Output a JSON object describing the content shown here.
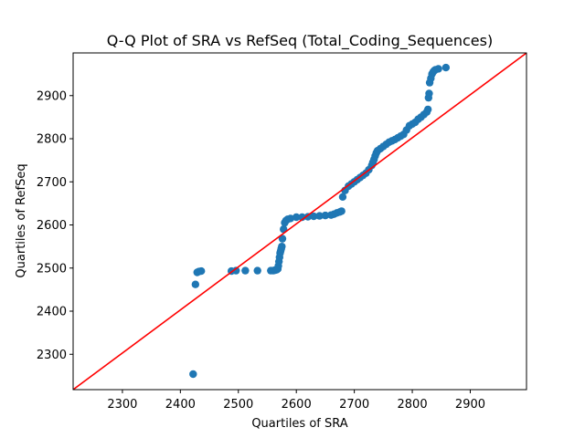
{
  "chart_data": {
    "type": "scatter",
    "title": "Q-Q Plot of SRA vs RefSeq (Total_Coding_Sequences)",
    "xlabel": "Quartiles of SRA",
    "ylabel": "Quartiles of RefSeq",
    "xlim": [
      2215,
      2997
    ],
    "ylim": [
      2218,
      2999
    ],
    "xticks": [
      2300,
      2400,
      2500,
      2600,
      2700,
      2800,
      2900
    ],
    "yticks": [
      2300,
      2400,
      2500,
      2600,
      2700,
      2800,
      2900
    ],
    "grid": false,
    "legend": "none",
    "point_color": "#1f77b4",
    "reference_line_color": "#ff0000",
    "reference_line": {
      "x": [
        2215,
        2997
      ],
      "y": [
        2218,
        2999
      ]
    },
    "series": [
      {
        "x": [
          2422,
          2426,
          2429,
          2432,
          2436,
          2488,
          2496,
          2512,
          2533,
          2556,
          2560,
          2563,
          2566,
          2568,
          2569,
          2570,
          2571,
          2572,
          2573,
          2574,
          2575,
          2576,
          2578,
          2580,
          2582,
          2585,
          2590,
          2600,
          2610,
          2620,
          2630,
          2640,
          2650,
          2660,
          2665,
          2670,
          2675,
          2678,
          2680,
          2684,
          2690,
          2695,
          2700,
          2705,
          2710,
          2715,
          2720,
          2725,
          2730,
          2732,
          2734,
          2736,
          2738,
          2740,
          2745,
          2750,
          2755,
          2760,
          2765,
          2770,
          2775,
          2780,
          2785,
          2790,
          2795,
          2800,
          2805,
          2810,
          2815,
          2820,
          2825,
          2827,
          2828,
          2829,
          2830,
          2832,
          2834,
          2836,
          2838,
          2840,
          2845,
          2858
        ],
        "y": [
          2254,
          2462,
          2490,
          2492,
          2493,
          2493,
          2494,
          2494,
          2494,
          2494,
          2494,
          2495,
          2496,
          2498,
          2505,
          2515,
          2525,
          2535,
          2540,
          2545,
          2550,
          2568,
          2590,
          2605,
          2610,
          2613,
          2615,
          2618,
          2618,
          2619,
          2620,
          2621,
          2622,
          2623,
          2625,
          2628,
          2630,
          2632,
          2665,
          2680,
          2690,
          2695,
          2700,
          2705,
          2710,
          2715,
          2720,
          2728,
          2738,
          2745,
          2752,
          2760,
          2767,
          2772,
          2777,
          2782,
          2787,
          2792,
          2795,
          2798,
          2802,
          2806,
          2810,
          2820,
          2830,
          2834,
          2838,
          2845,
          2850,
          2856,
          2862,
          2868,
          2895,
          2905,
          2930,
          2940,
          2950,
          2955,
          2958,
          2960,
          2962,
          2965
        ]
      }
    ]
  }
}
